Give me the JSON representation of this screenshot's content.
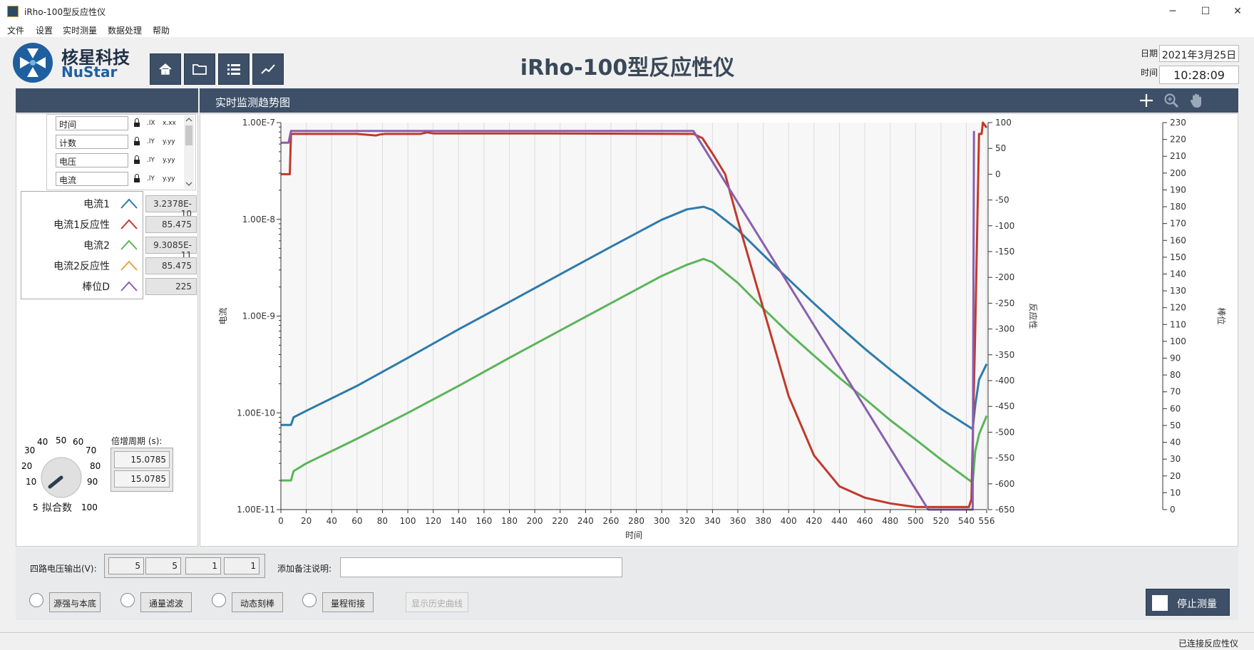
{
  "window": {
    "title": "iRho-100型反应性仪",
    "minimize": "─",
    "maximize": "☐",
    "close": "✕"
  },
  "menu": [
    "文件",
    "设置",
    "实时测量",
    "数据处理",
    "帮助"
  ],
  "logo": {
    "cn": "核星科技",
    "en": "NuStar"
  },
  "nav_icons": [
    "home-icon",
    "folder-icon",
    "list-icon",
    "trend-icon"
  ],
  "header": {
    "title": "iRho-100型反应性仪",
    "date_label": "日期",
    "date_value": "2021年3月25日",
    "time_label": "时间",
    "time_value": "10:28:09"
  },
  "chart_title": "实时监测趋势图",
  "chart_tools": [
    "crosshair-icon",
    "zoom-icon",
    "pan-hand-icon"
  ],
  "channels": [
    "时间",
    "计数",
    "电压",
    "电流"
  ],
  "legend": [
    {
      "name": "电流1",
      "color": "#2e7bab",
      "value": "3.2378E-10"
    },
    {
      "name": "电流1反应性",
      "color": "#c0392b",
      "value": "85.475"
    },
    {
      "name": "电流2",
      "color": "#5bb55a",
      "value": "9.3085E-11"
    },
    {
      "name": "电流2反应性",
      "color": "#e6a63a",
      "value": "85.475"
    },
    {
      "name": "棒位D",
      "color": "#8a5fae",
      "value": "225"
    }
  ],
  "knob": {
    "label": "拟合数",
    "ticks": [
      "5",
      "10",
      "20",
      "30",
      "40",
      "50",
      "60",
      "70",
      "80",
      "90",
      "100"
    ]
  },
  "period": {
    "label": "倍增周期 (s):",
    "values": [
      "15.0785",
      "15.0785"
    ]
  },
  "bottom": {
    "voltage_label": "四路电压输出(V):",
    "voltages": [
      "5",
      "5",
      "1",
      "1"
    ],
    "note_label": "添加备注说明:",
    "note_value": "",
    "buttons": [
      "源强与本底",
      "通量滤波",
      "动态刻棒",
      "量程衔接"
    ],
    "history_button": "显示历史曲线",
    "stop_button": "停止测量"
  },
  "status": "已连接反应性仪",
  "chart_data": {
    "type": "line",
    "xlabel": "时间",
    "ylabel": "电流",
    "y2label": "反应性",
    "y3label": "棒位",
    "x_ticks": [
      "0",
      "20",
      "40",
      "60",
      "80",
      "100",
      "120",
      "140",
      "160",
      "180",
      "200",
      "220",
      "240",
      "260",
      "280",
      "300",
      "320",
      "340",
      "360",
      "380",
      "400",
      "420",
      "440",
      "460",
      "480",
      "500",
      "520",
      "540",
      "556"
    ],
    "xlim": [
      0,
      556
    ],
    "y_ticks": [
      "1.00E-7",
      "1.00E-8",
      "1.00E-9",
      "1.00E-10",
      "1.00E-11"
    ],
    "ylim_log10": [
      -11,
      -7
    ],
    "y2_ticks": [
      "100",
      "50",
      "0",
      "-50",
      "-100",
      "-150",
      "-200",
      "-250",
      "-300",
      "-350",
      "-400",
      "-450",
      "-500",
      "-550",
      "-600",
      "-650"
    ],
    "y2lim": [
      -650,
      100
    ],
    "y3_ticks": [
      "230",
      "220",
      "210",
      "200",
      "190",
      "180",
      "170",
      "160",
      "150",
      "140",
      "130",
      "120",
      "110",
      "100",
      "90",
      "80",
      "70",
      "60",
      "50",
      "40",
      "30",
      "20",
      "10",
      "0"
    ],
    "y3lim": [
      0,
      230
    ],
    "series": [
      {
        "name": "电流1",
        "color": "#2e7bab",
        "axis": "y1",
        "x": [
          0,
          8,
          10,
          20,
          60,
          100,
          140,
          180,
          220,
          260,
          300,
          320,
          333,
          340,
          360,
          380,
          400,
          420,
          440,
          460,
          480,
          500,
          520,
          545,
          547,
          550,
          556
        ],
        "y": [
          7.5e-11,
          7.5e-11,
          9e-11,
          1.05e-10,
          1.9e-10,
          3.7e-10,
          7.3e-10,
          1.4e-09,
          2.7e-09,
          5.2e-09,
          9.9e-09,
          1.27e-08,
          1.35e-08,
          1.25e-08,
          7.8e-09,
          4.3e-09,
          2.4e-09,
          1.35e-09,
          7.8e-10,
          4.6e-10,
          2.8e-10,
          1.75e-10,
          1.1e-10,
          6.8e-11,
          1.2e-10,
          2.2e-10,
          3.2e-10
        ]
      },
      {
        "name": "电流2",
        "color": "#5bb55a",
        "axis": "y1",
        "x": [
          0,
          8,
          10,
          20,
          60,
          100,
          140,
          180,
          220,
          260,
          300,
          320,
          333,
          340,
          360,
          380,
          400,
          420,
          440,
          460,
          480,
          500,
          520,
          545,
          547,
          550,
          556
        ],
        "y": [
          2e-11,
          2e-11,
          2.5e-11,
          3e-11,
          5.4e-11,
          1e-10,
          1.9e-10,
          3.7e-10,
          7.1e-10,
          1.36e-09,
          2.6e-09,
          3.4e-09,
          3.9e-09,
          3.6e-09,
          2.2e-09,
          1.2e-09,
          6.7e-10,
          3.9e-10,
          2.3e-10,
          1.4e-10,
          8.4e-11,
          5.3e-11,
          3.3e-11,
          1.9e-11,
          4e-11,
          6e-11,
          9.3e-11
        ]
      },
      {
        "name": "电流1反应性",
        "color": "#c0392b",
        "axis": "y2",
        "x": [
          0,
          7,
          8,
          60,
          75,
          78,
          82,
          110,
          115,
          120,
          200,
          320,
          325,
          332,
          340,
          350,
          360,
          380,
          400,
          420,
          440,
          460,
          480,
          500,
          520,
          542,
          544,
          547,
          550,
          552,
          553,
          556
        ],
        "y": [
          0,
          0,
          78,
          78,
          75,
          77,
          78,
          78,
          81,
          79,
          79,
          78,
          78,
          70,
          40,
          0,
          -90,
          -260,
          -430,
          -545,
          -605,
          -627,
          -638,
          -645,
          -645,
          -645,
          -630,
          -300,
          78,
          78,
          100,
          90
        ]
      },
      {
        "name": "棒位D",
        "color": "#8a5fae",
        "axis": "y3",
        "x": [
          0,
          6,
          8,
          320,
          325,
          510,
          545,
          546
        ],
        "y": [
          218,
          218,
          225,
          225,
          225,
          0,
          0,
          225
        ]
      }
    ]
  }
}
